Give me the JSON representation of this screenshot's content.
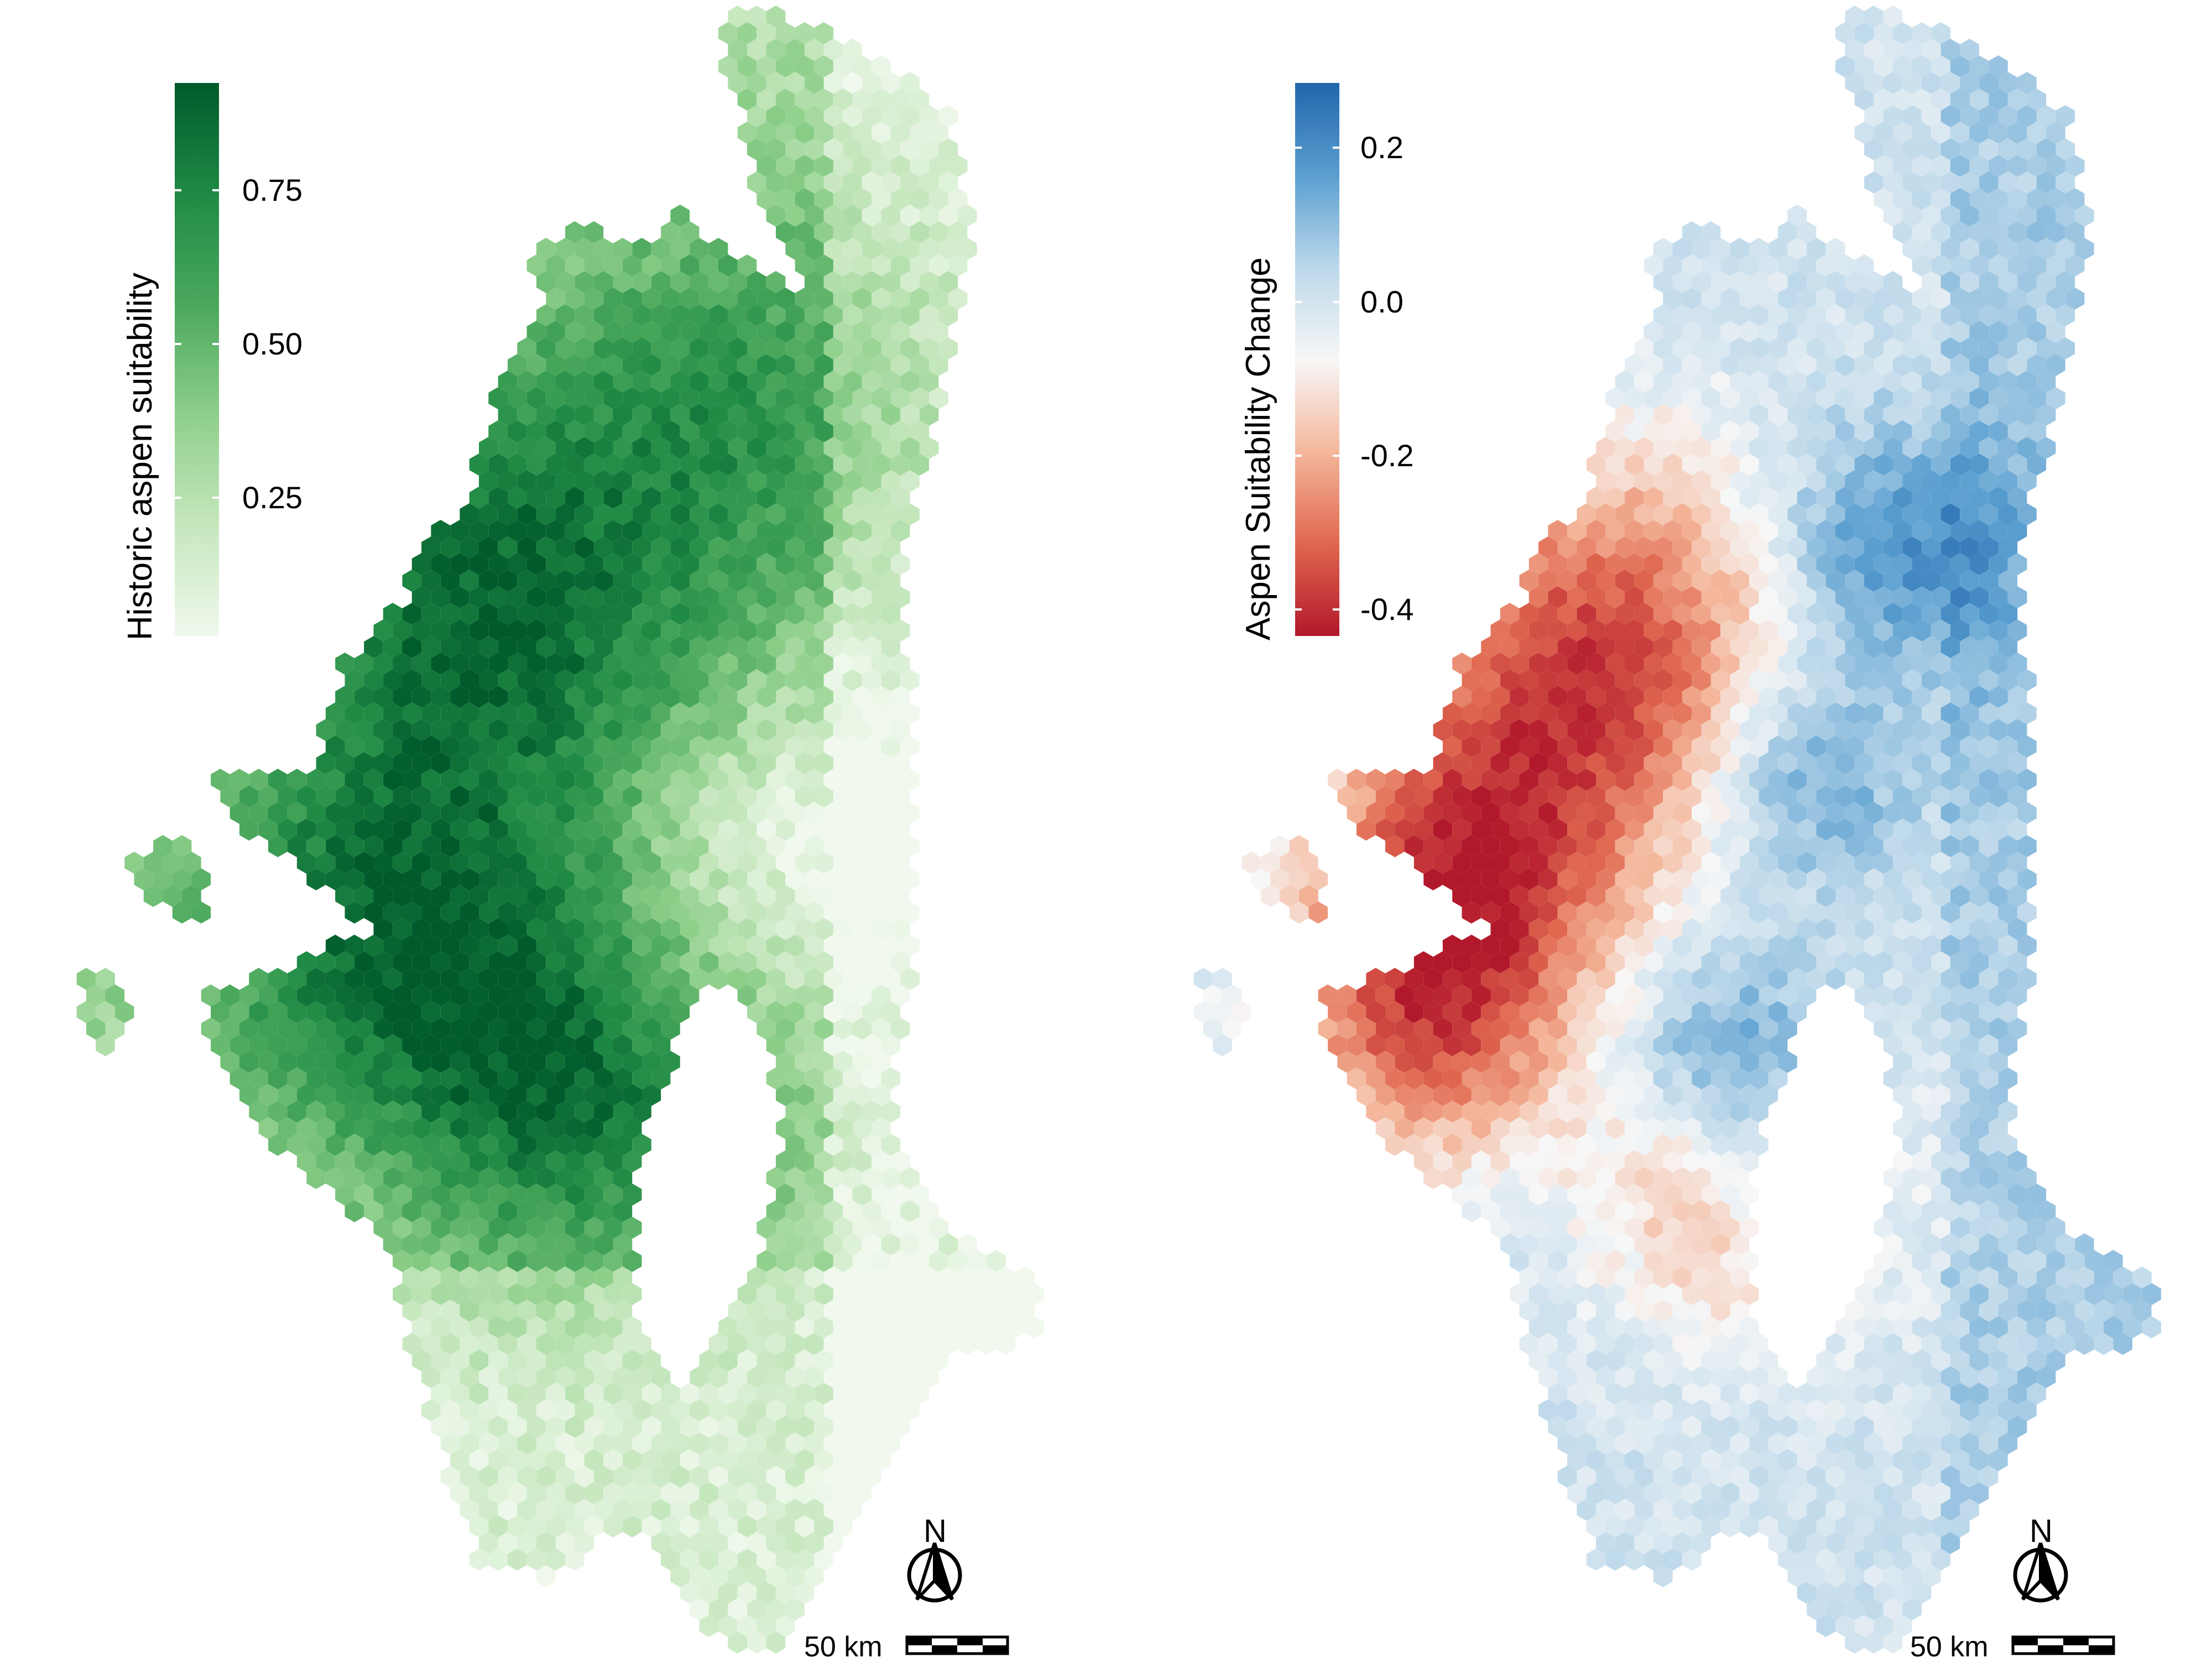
{
  "panels": [
    {
      "id": "historic",
      "legend": {
        "title": "Historic aspen suitability",
        "ticks": [
          {
            "label": "0.75",
            "value": 0.75
          },
          {
            "label": "0.50",
            "value": 0.5
          },
          {
            "label": "0.25",
            "value": 0.25
          }
        ],
        "range": [
          0.0,
          0.93
        ],
        "colors": [
          "#f1f9ee",
          "#c6e7be",
          "#8ecf8a",
          "#4aa85c",
          "#1f8a45",
          "#005a2b"
        ]
      },
      "north_label": "N",
      "scale_label": "50 km"
    },
    {
      "id": "change",
      "legend": {
        "title": "Aspen Suitability Change",
        "ticks": [
          {
            "label": "0.2",
            "value": 0.2
          },
          {
            "label": "0.0",
            "value": 0.0
          },
          {
            "label": "-0.2",
            "value": -0.2
          },
          {
            "label": "-0.4",
            "value": -0.4
          }
        ],
        "range": [
          -0.44,
          0.28
        ],
        "colors": [
          "#b2182b",
          "#e0674f",
          "#f4b79b",
          "#f7f7f7",
          "#bcd8ea",
          "#5a9fd0",
          "#2166ac"
        ]
      },
      "north_label": "N",
      "scale_label": "50 km"
    }
  ]
}
